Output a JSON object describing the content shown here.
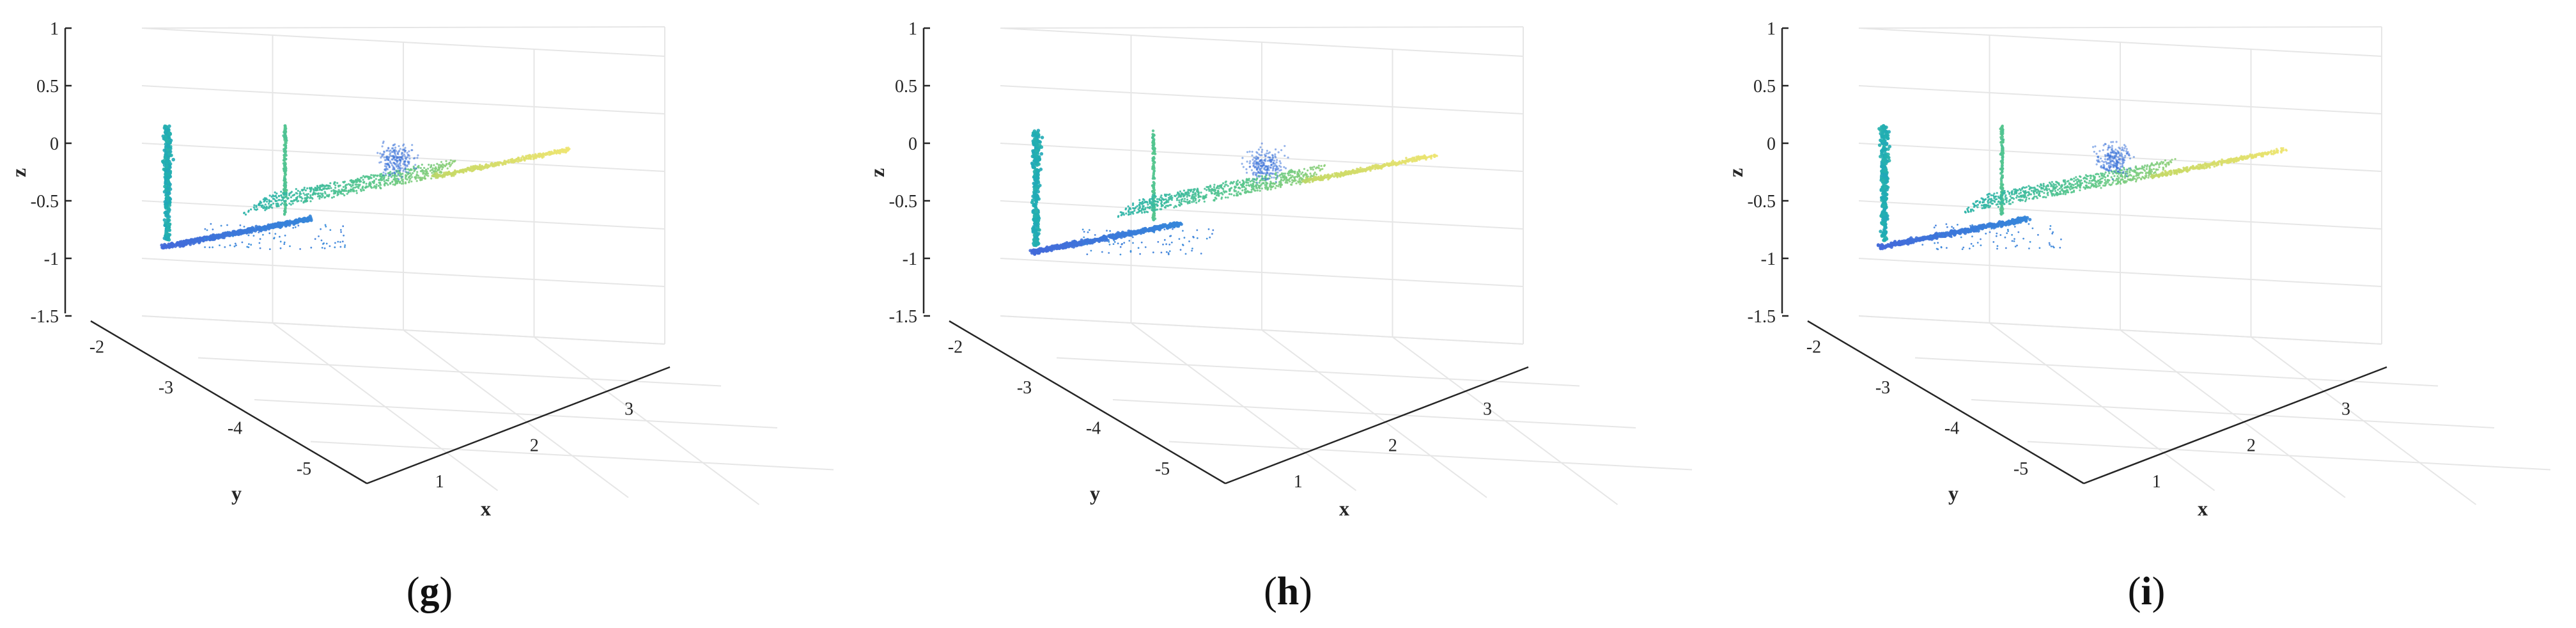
{
  "chart_data": [
    {
      "type": "scatter",
      "panel_label": "g",
      "zlabel": "z",
      "ylabel": "y",
      "xlabel": "x",
      "zticks": [
        "1",
        "0.5",
        "0",
        "-0.5",
        "-1",
        "-1.5"
      ],
      "yticks": [
        "-2",
        "-3",
        "-4",
        "-5"
      ],
      "xticks": [
        "1",
        "2",
        "3"
      ],
      "zlim": [
        -1.5,
        1
      ],
      "ylim": [
        -5,
        -2
      ],
      "xlim": [
        1,
        3
      ],
      "grid": true,
      "colormap": "viridis",
      "variant": 0
    },
    {
      "type": "scatter",
      "panel_label": "h",
      "zlabel": "z",
      "ylabel": "y",
      "xlabel": "x",
      "zticks": [
        "1",
        "0.5",
        "0",
        "-0.5",
        "-1",
        "-1.5"
      ],
      "yticks": [
        "-2",
        "-3",
        "-4",
        "-5"
      ],
      "xticks": [
        "1",
        "2",
        "3"
      ],
      "zlim": [
        -1.5,
        1
      ],
      "ylim": [
        -5,
        -2
      ],
      "xlim": [
        1,
        3
      ],
      "grid": true,
      "colormap": "viridis",
      "variant": 1
    },
    {
      "type": "scatter",
      "panel_label": "i",
      "zlabel": "z",
      "ylabel": "y",
      "xlabel": "x",
      "zticks": [
        "1",
        "0.5",
        "0",
        "-0.5",
        "-1",
        "-1.5"
      ],
      "yticks": [
        "-2",
        "-3",
        "-4",
        "-5"
      ],
      "xticks": [
        "1",
        "2",
        "3"
      ],
      "zlim": [
        -1.5,
        1
      ],
      "ylim": [
        -5,
        -2
      ],
      "xlim": [
        1,
        3
      ],
      "grid": true,
      "colormap": "viridis",
      "variant": 2
    }
  ]
}
